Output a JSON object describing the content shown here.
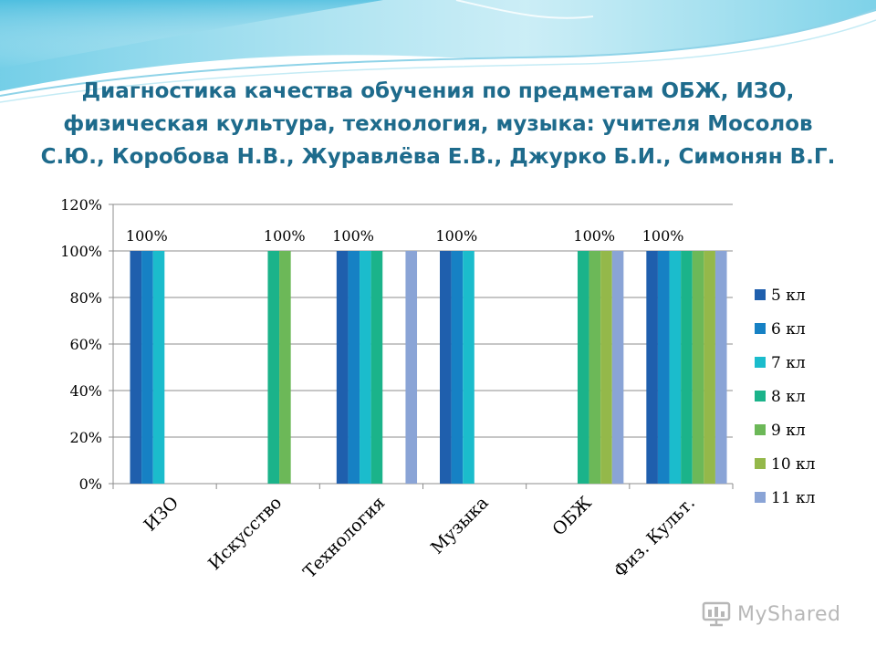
{
  "slide": {
    "title": "Диагностика качества обучения по предметам ОБЖ, ИЗО, физическая культура, технология, музыка: учителя Мосолов С.Ю., Коробова Н.В., Журавлёва Е.В., Джурко Б.И., Симонян В.Г.",
    "watermark_prefix": "My",
    "watermark_suffix": "Shared",
    "colors": {
      "title": "#1e6b8c",
      "header_wave": "#8fd3e8"
    }
  },
  "chart_data": {
    "type": "bar",
    "categories": [
      "ИЗО",
      "Искусство",
      "Технология",
      "Музыка",
      "ОБЖ",
      "Физ. Культ."
    ],
    "series": [
      {
        "name": "5 кл",
        "color": "#1f5fad",
        "values": [
          100,
          null,
          100,
          100,
          null,
          100
        ]
      },
      {
        "name": "6 кл",
        "color": "#1681c4",
        "values": [
          100,
          null,
          100,
          100,
          null,
          100
        ]
      },
      {
        "name": "7 кл",
        "color": "#1bbccc",
        "values": [
          100,
          null,
          100,
          100,
          null,
          100
        ]
      },
      {
        "name": "8 кл",
        "color": "#1bb38a",
        "values": [
          null,
          100,
          100,
          null,
          100,
          100
        ]
      },
      {
        "name": "9 кл",
        "color": "#6cb858",
        "values": [
          null,
          100,
          null,
          null,
          100,
          100
        ]
      },
      {
        "name": "10 кл",
        "color": "#94b84a",
        "values": [
          null,
          null,
          null,
          null,
          100,
          100
        ]
      },
      {
        "name": "11 кл",
        "color": "#8aa4d6",
        "values": [
          null,
          null,
          100,
          null,
          100,
          100
        ]
      }
    ],
    "data_labels": [
      {
        "category": "ИЗО",
        "text": "100%"
      },
      {
        "category": "Искусство",
        "text": "100%"
      },
      {
        "category": "Технология",
        "text": "100%"
      },
      {
        "category": "Музыка",
        "text": "100%"
      },
      {
        "category": "ОБЖ",
        "text": "100%"
      },
      {
        "category": "Физ. Культ.",
        "text": "100%"
      }
    ],
    "y_ticks": [
      "0%",
      "20%",
      "40%",
      "60%",
      "80%",
      "100%",
      "120%"
    ],
    "ylim": [
      0,
      120
    ],
    "grid": true,
    "legend_position": "right"
  }
}
